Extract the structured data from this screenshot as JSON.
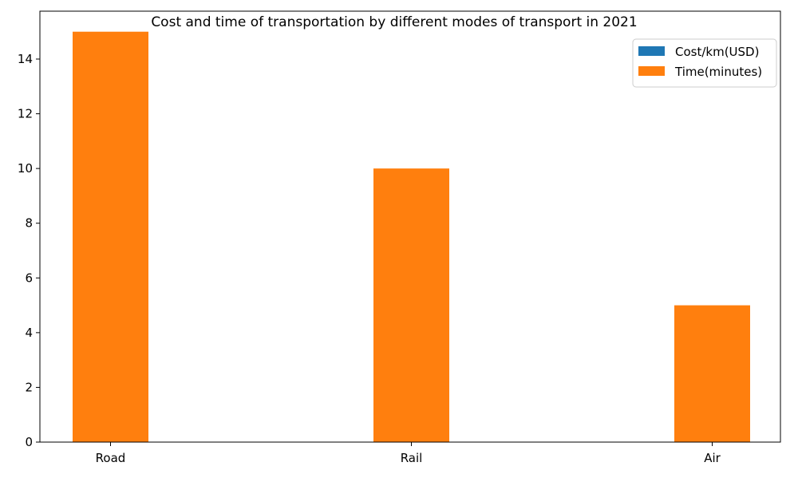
{
  "chart_data": {
    "type": "bar",
    "title": "Cost and time of transportation by different modes of transport in 2021",
    "xlabel": "",
    "ylabel": "",
    "categories": [
      "Road",
      "Rail",
      "Air"
    ],
    "series": [
      {
        "name": "Cost/km(USD)",
        "color": "#1f77b4",
        "values": [
          0,
          0,
          0
        ]
      },
      {
        "name": "Time(minutes)",
        "color": "#ff7f0e",
        "values": [
          15,
          10,
          5
        ]
      }
    ],
    "ylim": [
      0,
      15.75
    ],
    "yticks": [
      "0",
      "2",
      "4",
      "6",
      "8",
      "10",
      "12",
      "14"
    ],
    "grid": false,
    "legend_position": "top-right"
  }
}
